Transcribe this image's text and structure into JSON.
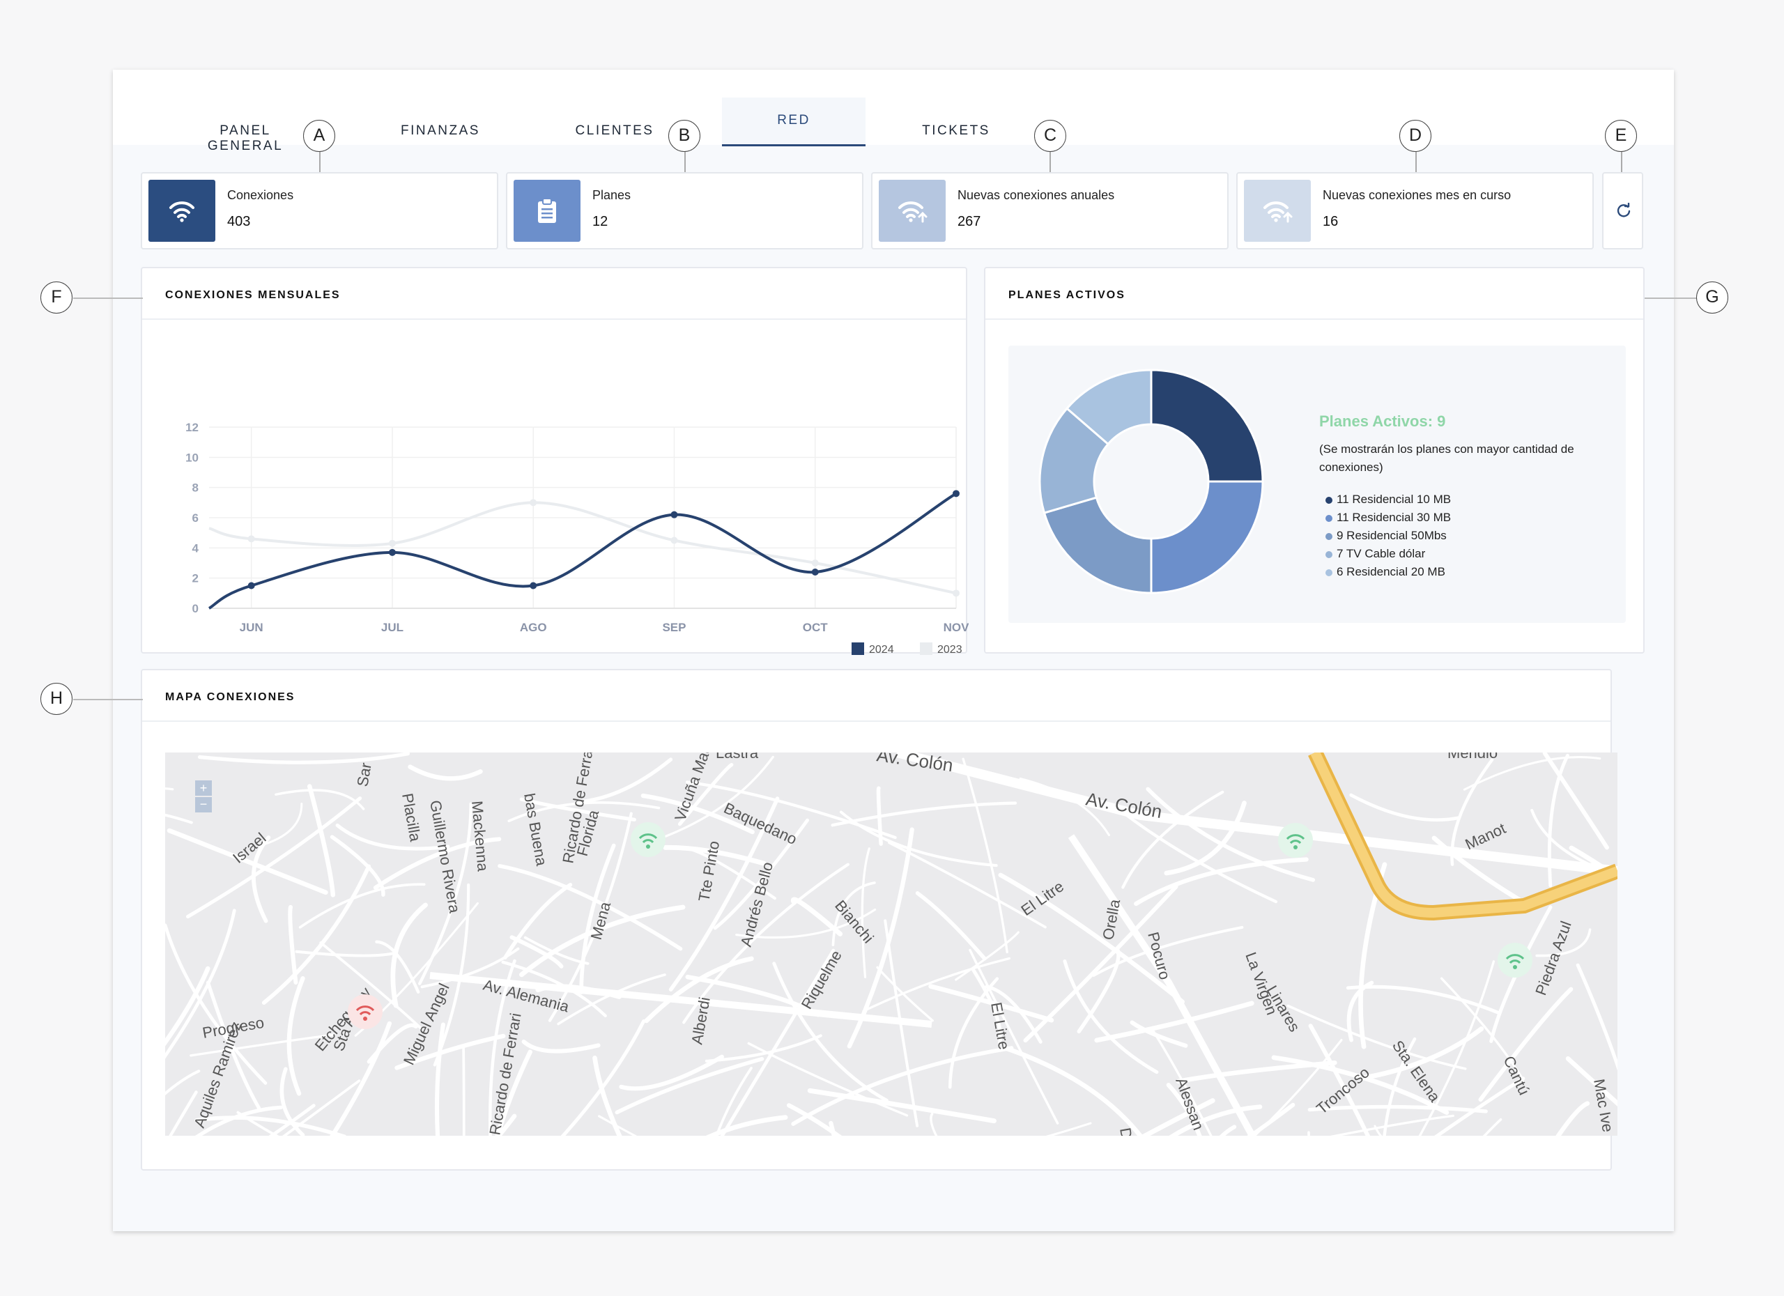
{
  "tabs": [
    {
      "label": "PANEL GENERAL"
    },
    {
      "label": "FINANZAS"
    },
    {
      "label": "CLIENTES"
    },
    {
      "label": "RED"
    },
    {
      "label": "TICKETS"
    }
  ],
  "active_tab": "RED",
  "callouts": {
    "a": "A",
    "b": "B",
    "c": "C",
    "d": "D",
    "e": "E",
    "f": "F",
    "g": "G",
    "h": "H"
  },
  "stats": [
    {
      "label": "Conexiones",
      "value": "403",
      "icon": "wifi-icon",
      "color": "#2b4d80"
    },
    {
      "label": "Planes",
      "value": "12",
      "icon": "clipboard-icon",
      "color": "#6c8fcb"
    },
    {
      "label": "Nuevas conexiones anuales",
      "value": "267",
      "icon": "wifi-upload-icon",
      "color": "#b5c6e0"
    },
    {
      "label": "Nuevas conexiones mes en curso",
      "value": "16",
      "icon": "wifi-upload-icon",
      "color": "#d1dceb"
    }
  ],
  "refresh_icon": "refresh-icon",
  "monthly_panel": {
    "title": "CONEXIONES MENSUALES"
  },
  "plans_panel": {
    "title": "PLANES ACTIVOS",
    "headline": "Planes Activos: 9",
    "note": "(Se mostrarán los planes con mayor cantidad de conexiones)",
    "legend": [
      "11 Residencial 10 MB",
      "11 Residencial 30 MB",
      "9 Residencial 50Mbs",
      "7 TV Cable dólar",
      "6 Residencial 20 MB"
    ]
  },
  "map_panel": {
    "title": "MAPA CONEXIONES",
    "zoom_in": "+",
    "zoom_out": "−",
    "streets": [
      "Lastra",
      "Av. Colón",
      "Av. Colón",
      "Mendio",
      "Sar",
      "Placilla",
      "Guillermo Rivera",
      "Mackenna",
      "bas Buena",
      "Ricardo de Ferrari",
      "Florida",
      "Vicuña Mackenna",
      "Baquedano",
      "Manot",
      "Israel",
      "Tte Pinto",
      "Andrés Bello",
      "Bianchi",
      "El Litre",
      "Orella",
      "Pocuro",
      "La Virgen",
      "Linares",
      "Piedra Azul",
      "Mena",
      "Riquelme",
      "Progreso",
      "Etchegaray",
      "Sta Ana",
      "Miguel Angel",
      "Av. Alemania",
      "Ricardo de Ferrari",
      "Alberdi",
      "El Litre",
      "Alessan",
      "Sta. Elena",
      "Cantú",
      "Mac Ive",
      "Aquiles Ramirez",
      "Troncoso",
      "De"
    ]
  },
  "chart_data": [
    {
      "type": "line",
      "categories": [
        "JUN",
        "JUL",
        "AGO",
        "SEP",
        "OCT",
        "NOV"
      ],
      "x_start_extra": 0,
      "series": [
        {
          "name": "2024",
          "color": "#27426e",
          "points": [
            [
              0.7,
              0
            ],
            [
              1,
              1.5
            ],
            [
              2,
              3.7
            ],
            [
              3,
              1.5
            ],
            [
              4,
              6.2
            ],
            [
              5,
              2.4
            ],
            [
              6,
              7.6
            ]
          ]
        },
        {
          "name": "2023",
          "color": "#e9ecef",
          "points": [
            [
              0.7,
              5.3
            ],
            [
              1,
              4.6
            ],
            [
              2,
              4.3
            ],
            [
              3,
              7.0
            ],
            [
              4,
              4.5
            ],
            [
              5,
              3.0
            ],
            [
              6,
              1.0
            ]
          ]
        }
      ],
      "ylim": [
        0,
        12
      ],
      "yticks": [
        0,
        2,
        4,
        6,
        8,
        10,
        12
      ],
      "grid": true,
      "legend_position": "bottom-right"
    },
    {
      "type": "pie",
      "donut": true,
      "labels": [
        "11 Residencial 10 MB",
        "11 Residencial 30 MB",
        "9 Residencial 50Mbs",
        "7 TV Cable dólar",
        "6 Residencial 20 MB"
      ],
      "values": [
        11,
        11,
        9,
        7,
        6
      ],
      "colors": [
        "#27426e",
        "#6c8fcb",
        "#7c9bc6",
        "#98b4d6",
        "#a9c3e0"
      ],
      "legend_colors": [
        "#27426e",
        "#6c8fcb",
        "#7c9bc6",
        "#98b4d6",
        "#a9c3e0"
      ]
    }
  ]
}
